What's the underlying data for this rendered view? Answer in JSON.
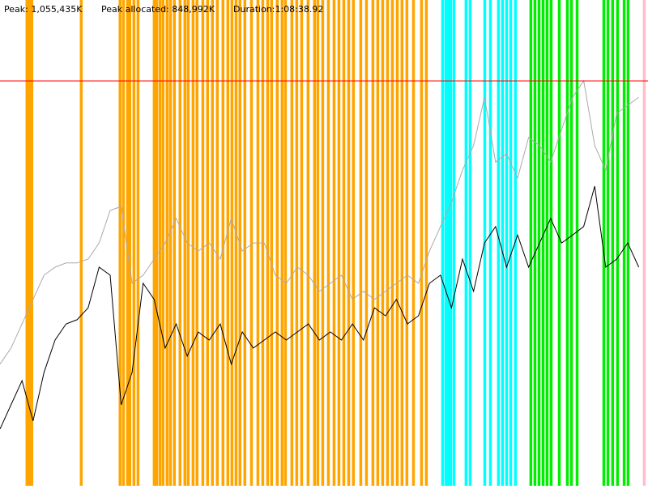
{
  "chart_data": {
    "type": "line",
    "header": [
      "Peak: 1,055,435K",
      "Peak allocated: 848,992K",
      "Duration:1:08:38.92"
    ],
    "xlim": [
      0,
      4118.92
    ],
    "ylim": [
      0,
      1266522
    ],
    "peak_line": {
      "value": 1055435,
      "color": "#ff0000"
    },
    "events": [
      {
        "color": "#ffa500",
        "x": [
          170,
          185,
          201,
          515,
          762,
          783,
          809,
          824,
          850,
          876,
          979,
          994,
          1015,
          1035,
          1061,
          1082,
          1107,
          1143,
          1174,
          1195,
          1226,
          1251,
          1288,
          1318,
          1349,
          1380,
          1416,
          1447,
          1473,
          1499,
          1524,
          1555,
          1597,
          1638,
          1669,
          1700,
          1725,
          1761,
          1792,
          1813,
          1854,
          1885,
          1916,
          1957,
          1998,
          2019,
          2050,
          2086,
          2122,
          2153,
          2184,
          2215,
          2245,
          2292,
          2328,
          2369,
          2400,
          2431,
          2462,
          2493,
          2524,
          2554,
          2585,
          2627,
          2678,
          2709
        ]
      },
      {
        "color": "#00ffff",
        "x": [
          2812,
          2833,
          2848,
          2863,
          2884,
          2961,
          2987,
          3080,
          3116,
          3167,
          3193,
          3219,
          3245,
          3275
        ]
      },
      {
        "color": "#00ee00",
        "x": [
          3373,
          3399,
          3425,
          3451,
          3476,
          3502,
          3554,
          3605,
          3631,
          3667,
          3837,
          3863,
          3893,
          3924,
          3966,
          3991
        ]
      },
      {
        "color": "#ffc0cb",
        "x": [
          4094
        ]
      }
    ],
    "x": [
      0,
      70,
      140,
      210,
      280,
      350,
      420,
      490,
      560,
      630,
      700,
      770,
      840,
      910,
      980,
      1050,
      1120,
      1190,
      1260,
      1330,
      1400,
      1470,
      1540,
      1610,
      1680,
      1750,
      1820,
      1890,
      1960,
      2030,
      2100,
      2170,
      2240,
      2310,
      2380,
      2450,
      2520,
      2590,
      2660,
      2730,
      2800,
      2870,
      2940,
      3010,
      3080,
      3150,
      3220,
      3290,
      3360,
      3430,
      3500,
      3570,
      3640,
      3710,
      3780,
      3850,
      3920,
      3990,
      4060
    ],
    "series": [
      {
        "color": "#aaaaaa",
        "values": [
          317000,
          359000,
          422000,
          486000,
          549000,
          570000,
          581000,
          581000,
          591000,
          633000,
          718000,
          728000,
          528000,
          549000,
          591000,
          633000,
          697000,
          633000,
          612000,
          633000,
          591000,
          697000,
          612000,
          633000,
          633000,
          549000,
          528000,
          570000,
          549000,
          507000,
          528000,
          549000,
          486000,
          507000,
          486000,
          507000,
          528000,
          549000,
          528000,
          612000,
          676000,
          739000,
          823000,
          887000,
          1013000,
          844000,
          866000,
          802000,
          908000,
          887000,
          844000,
          929000,
          1013000,
          1056000,
          887000,
          823000,
          971000,
          992000,
          1013000
        ]
      },
      {
        "color": "#000000",
        "values": [
          148000,
          211000,
          274000,
          169000,
          296000,
          380000,
          422000,
          433000,
          464000,
          570000,
          549000,
          211000,
          296000,
          528000,
          486000,
          359000,
          422000,
          338000,
          401000,
          380000,
          422000,
          317000,
          401000,
          359000,
          380000,
          401000,
          380000,
          401000,
          422000,
          380000,
          401000,
          380000,
          422000,
          380000,
          464000,
          443000,
          486000,
          422000,
          443000,
          528000,
          549000,
          464000,
          591000,
          507000,
          633000,
          676000,
          570000,
          654000,
          570000,
          633000,
          697000,
          633000,
          654000,
          676000,
          781000,
          570000,
          591000,
          633000,
          570000
        ]
      }
    ]
  }
}
